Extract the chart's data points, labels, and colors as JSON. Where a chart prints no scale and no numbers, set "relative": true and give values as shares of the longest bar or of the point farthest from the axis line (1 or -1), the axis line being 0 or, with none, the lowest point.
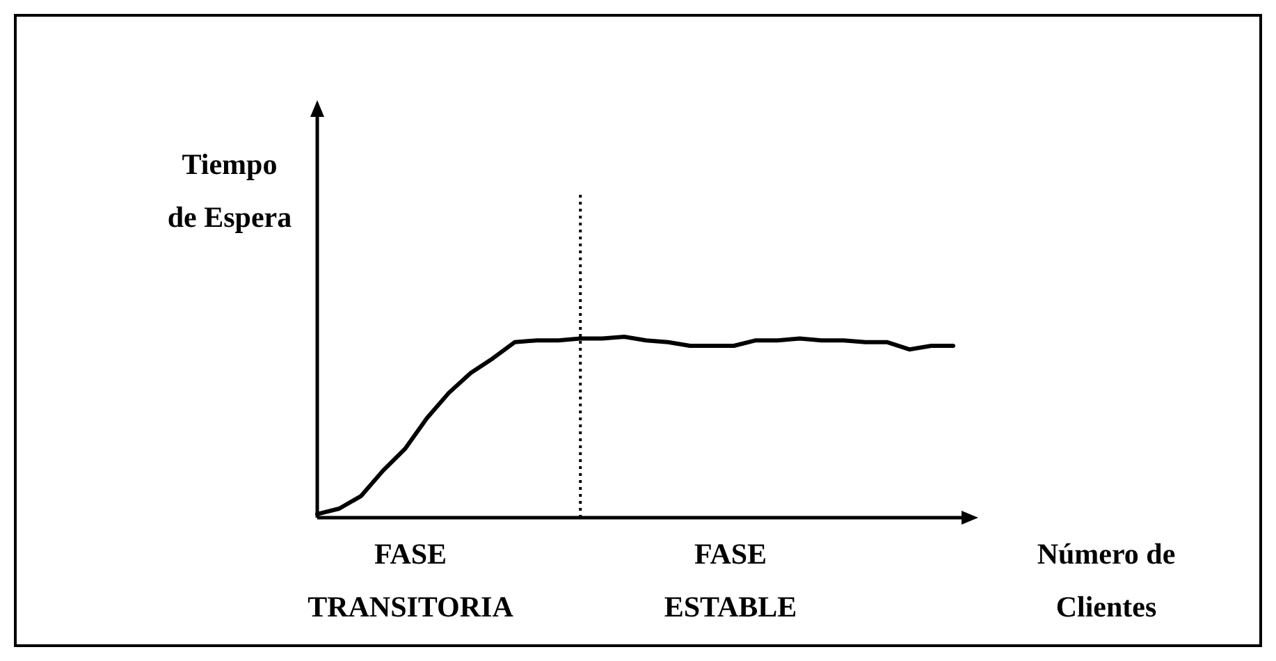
{
  "chart_data": {
    "type": "line",
    "relative": true,
    "ylabel": "Tiempo\nde Espera",
    "xlabel": "Número de\nClientes",
    "categories": [
      null,
      null,
      null,
      null,
      null,
      null,
      null,
      null,
      null,
      null,
      null,
      null,
      null,
      null,
      null,
      null,
      null,
      null,
      null,
      null,
      null,
      null,
      null,
      null,
      null,
      null,
      null,
      null,
      null,
      null
    ],
    "series": [
      {
        "color": "#000000",
        "values": [
          0.02,
          0.05,
          0.12,
          0.26,
          0.38,
          0.55,
          0.69,
          0.8,
          0.88,
          0.97,
          0.98,
          0.98,
          0.99,
          0.99,
          1,
          0.98,
          0.97,
          0.95,
          0.95,
          0.95,
          0.98,
          0.98,
          0.99,
          0.98,
          0.98,
          0.97,
          0.97,
          0.93,
          0.95,
          0.95
        ]
      }
    ],
    "annotations": [
      "FASE\nTRANSITORIA",
      "FASE\nESTABLE"
    ],
    "marker": "none",
    "line_style": "solid"
  }
}
